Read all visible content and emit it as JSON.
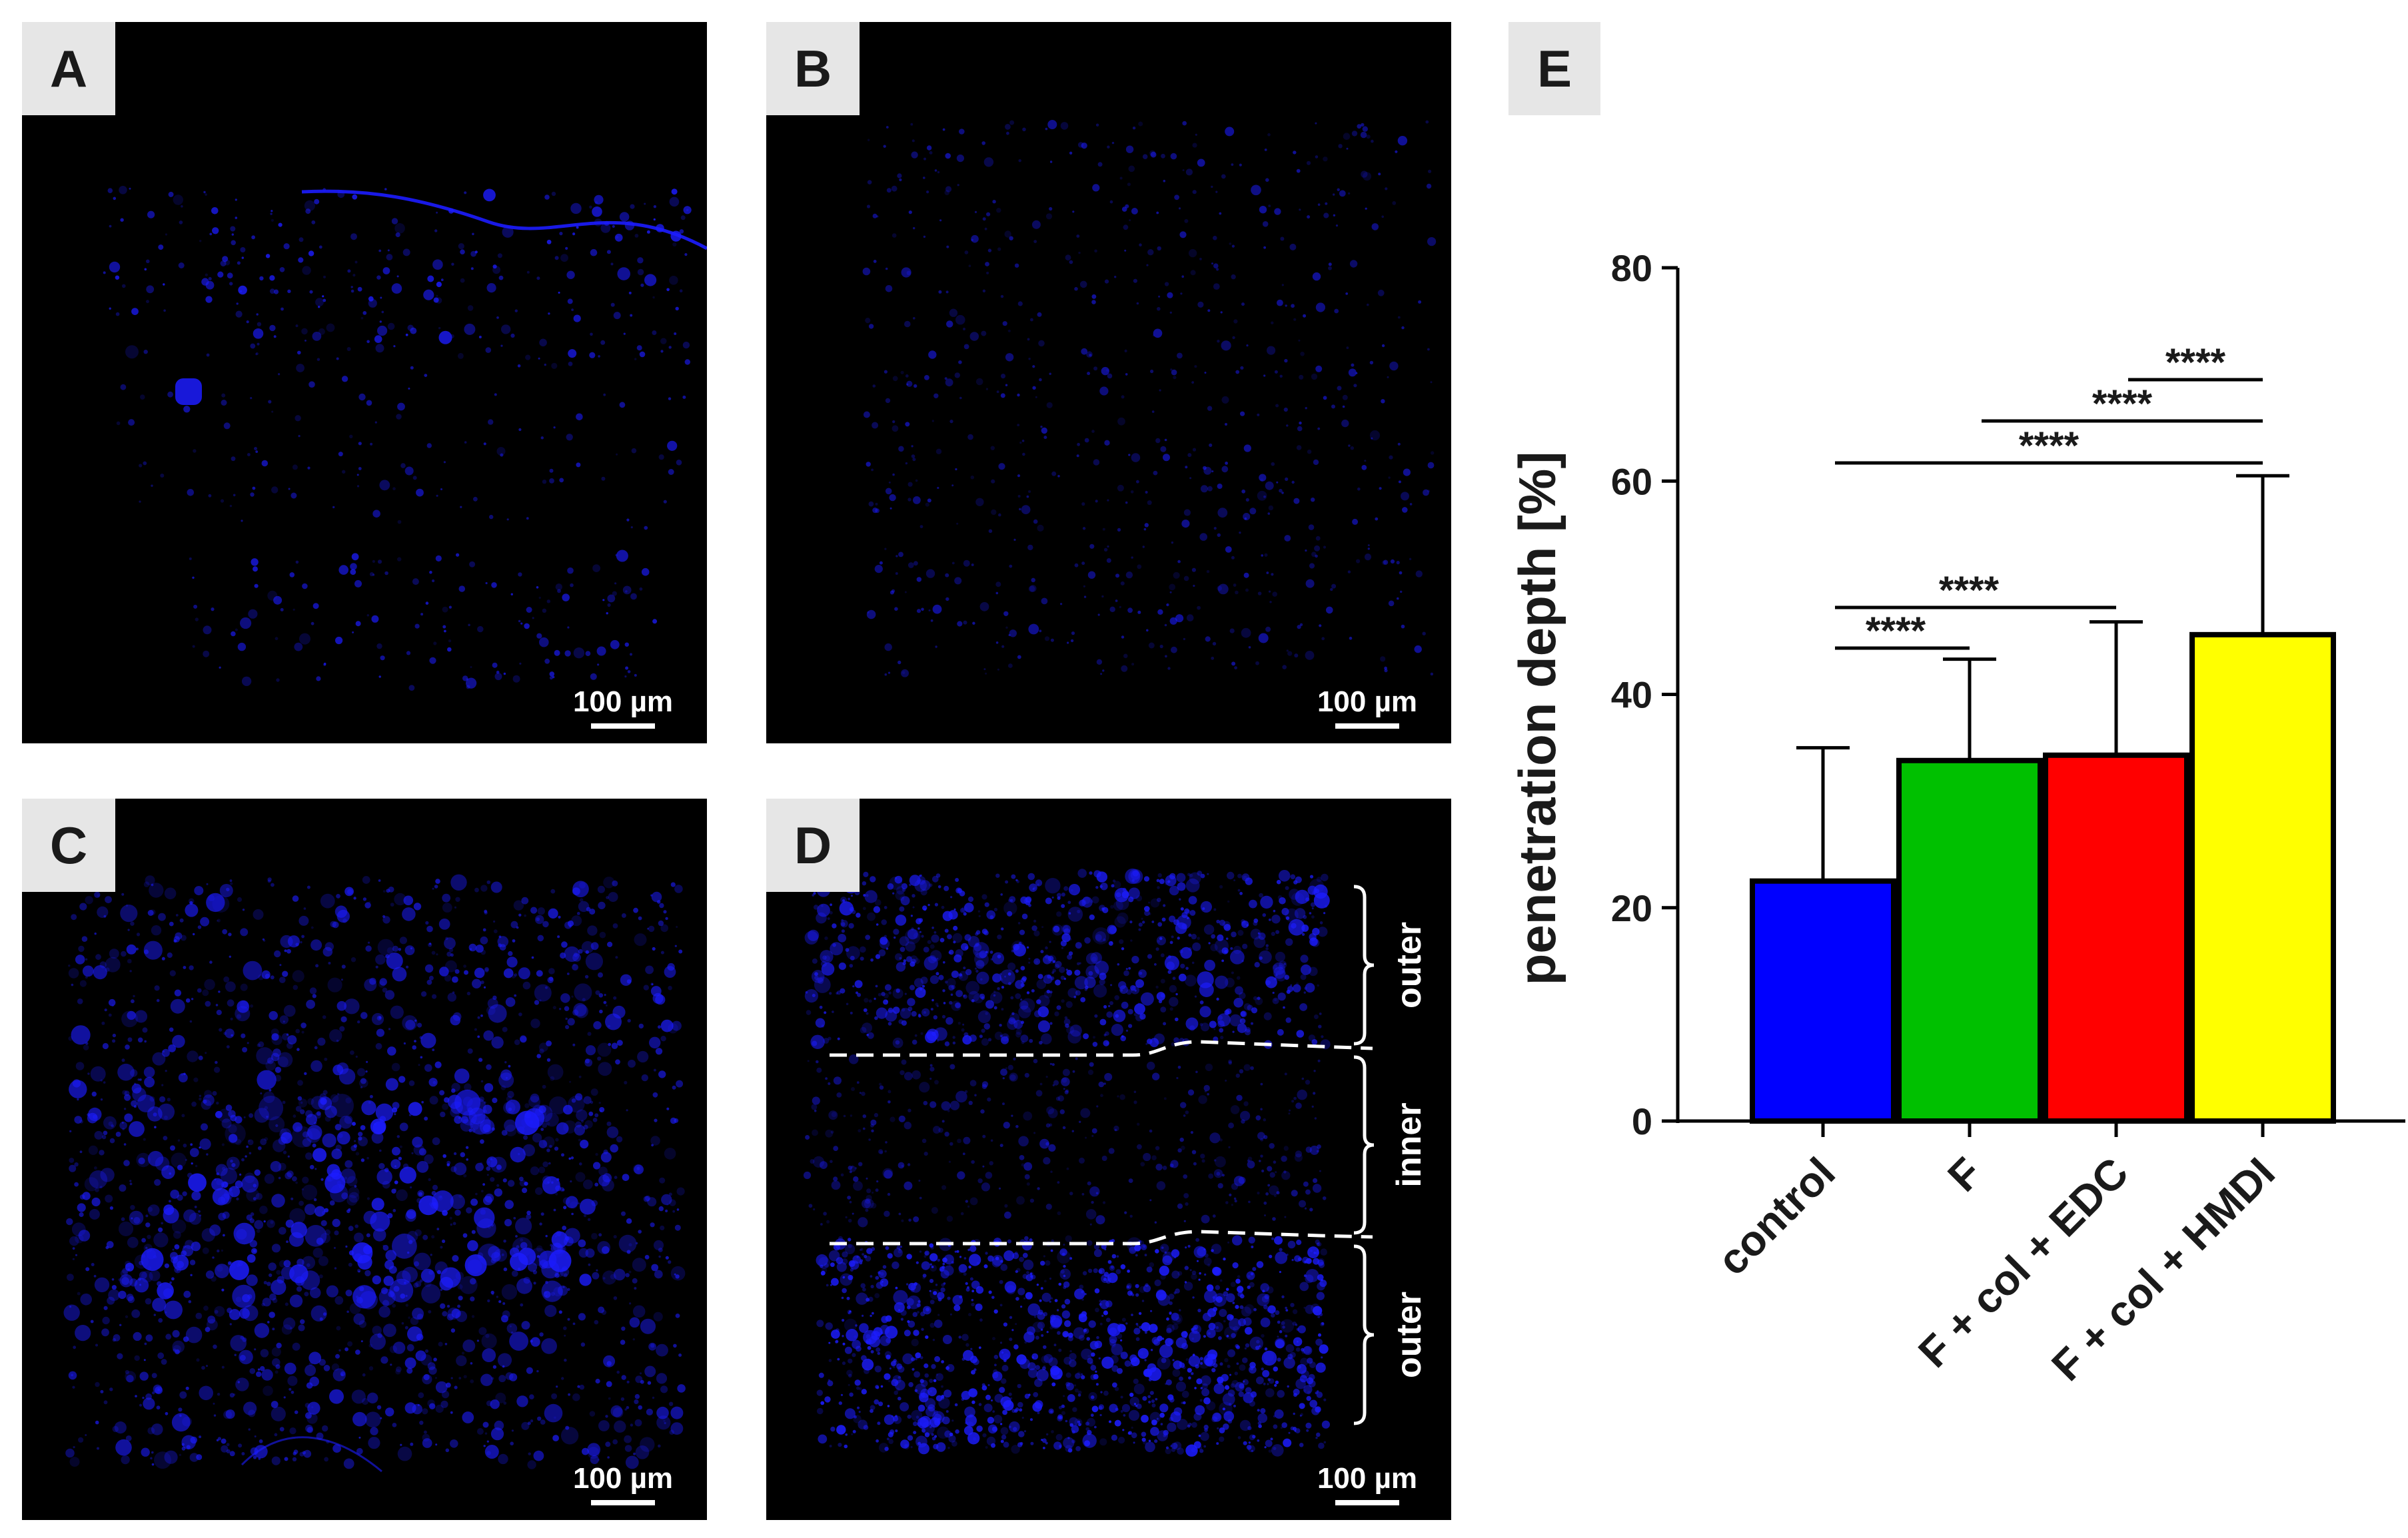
{
  "panels": [
    {
      "id": "A",
      "label": "A",
      "scale_bar": "100 µm"
    },
    {
      "id": "B",
      "label": "B",
      "scale_bar": "100 µm"
    },
    {
      "id": "C",
      "label": "C",
      "scale_bar": "100 µm"
    },
    {
      "id": "D",
      "label": "D",
      "scale_bar": "100 µm",
      "regions": [
        "outer",
        "inner",
        "outer"
      ]
    }
  ],
  "fluorescence_color": "#1c1cff",
  "chart_panel_label": "E",
  "chart_data": {
    "type": "bar",
    "title": "",
    "xlabel": "",
    "ylabel": "penetration depth [%]",
    "ylim": [
      0,
      80
    ],
    "yticks": [
      0,
      20,
      40,
      60,
      80
    ],
    "grid": false,
    "categories": [
      "control",
      "F",
      "F + col + EDC",
      "F + col + HMDI"
    ],
    "values": [
      22.5,
      33.8,
      34.3,
      45.6
    ],
    "errors": [
      12.5,
      9.5,
      12.5,
      14.9
    ],
    "colors": [
      "#0000ff",
      "#00c000",
      "#ff0000",
      "#ffff00"
    ],
    "significance": [
      {
        "from": "control",
        "to": "F",
        "label": "****"
      },
      {
        "from": "control",
        "to": "F + col + EDC",
        "label": "****"
      },
      {
        "from": "control",
        "to": "F + col + HMDI",
        "label": "****"
      },
      {
        "from": "F",
        "to": "F + col + HMDI",
        "label": "****"
      },
      {
        "from": "F + col + EDC",
        "to": "F + col + HMDI",
        "label": "****"
      }
    ]
  }
}
